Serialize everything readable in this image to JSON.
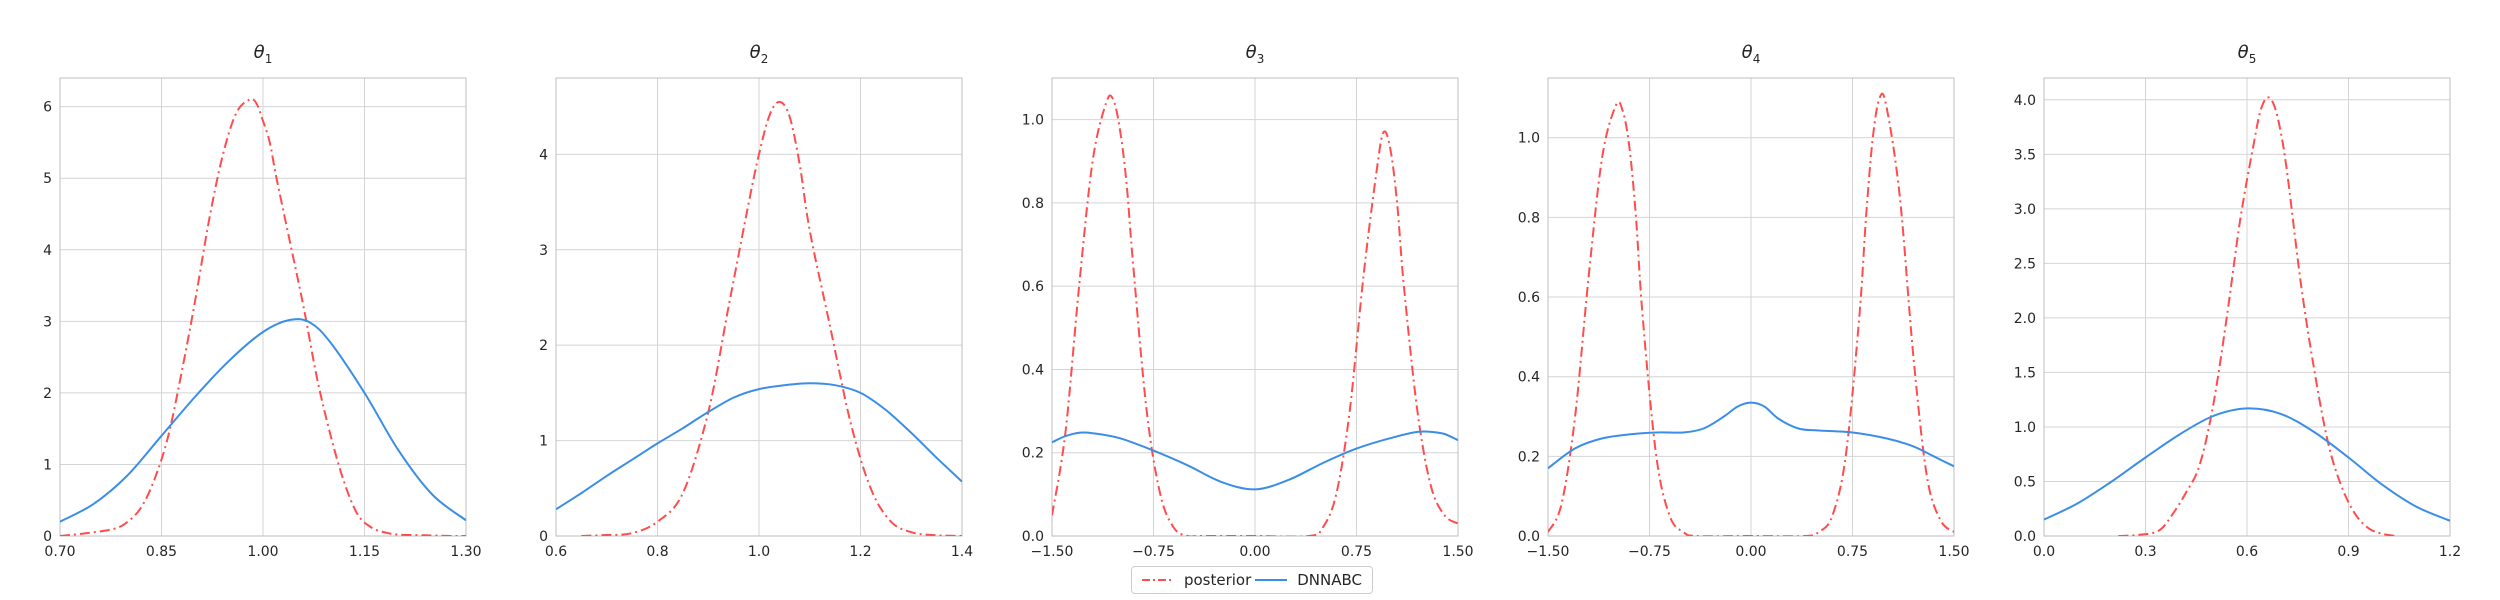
{
  "chart_data": [
    {
      "type": "line",
      "title": "θ1",
      "xlabel": "",
      "ylabel": "",
      "xlim": [
        0.7,
        1.3
      ],
      "ylim": [
        0,
        6.4
      ],
      "xticks": [
        0.7,
        0.85,
        1.0,
        1.15,
        1.3
      ],
      "xtick_labels": [
        "0.70",
        "0.85",
        "1.00",
        "1.15",
        "1.30"
      ],
      "yticks": [
        0,
        1,
        2,
        3,
        4,
        5,
        6
      ],
      "ytick_labels": [
        "0",
        "1",
        "2",
        "3",
        "4",
        "5",
        "6"
      ],
      "grid": true,
      "series": [
        {
          "name": "posterior",
          "style": "dashdot",
          "color": "#ff4d4d",
          "x": [
            0.7,
            0.74,
            0.78,
            0.8,
            0.82,
            0.84,
            0.86,
            0.88,
            0.9,
            0.92,
            0.94,
            0.96,
            0.98,
            0.99,
            1.0,
            1.01,
            1.02,
            1.04,
            1.06,
            1.08,
            1.1,
            1.12,
            1.14,
            1.16,
            1.18,
            1.2,
            1.24,
            1.28,
            1.3
          ],
          "y": [
            0.0,
            0.04,
            0.1,
            0.2,
            0.4,
            0.8,
            1.4,
            2.3,
            3.3,
            4.4,
            5.3,
            5.9,
            6.1,
            6.05,
            5.8,
            5.5,
            5.0,
            4.1,
            3.2,
            2.2,
            1.4,
            0.75,
            0.3,
            0.12,
            0.05,
            0.02,
            0.01,
            0.0,
            0.0
          ]
        },
        {
          "name": "DNNABC",
          "style": "solid",
          "color": "#3b8ee8",
          "x": [
            0.7,
            0.75,
            0.8,
            0.85,
            0.9,
            0.95,
            1.0,
            1.04,
            1.07,
            1.1,
            1.15,
            1.2,
            1.25,
            1.3
          ],
          "y": [
            0.2,
            0.45,
            0.85,
            1.4,
            1.95,
            2.45,
            2.85,
            3.02,
            2.98,
            2.7,
            2.0,
            1.2,
            0.58,
            0.22
          ]
        }
      ]
    },
    {
      "type": "line",
      "title": "θ2",
      "xlabel": "",
      "ylabel": "",
      "xlim": [
        0.6,
        1.4
      ],
      "ylim": [
        0,
        4.8
      ],
      "xticks": [
        0.6,
        0.8,
        1.0,
        1.2,
        1.4
      ],
      "xtick_labels": [
        "0.6",
        "0.8",
        "1.0",
        "1.2",
        "1.4"
      ],
      "yticks": [
        0,
        1,
        2,
        3,
        4
      ],
      "ytick_labels": [
        "0",
        "1",
        "2",
        "3",
        "4"
      ],
      "grid": true,
      "series": [
        {
          "name": "posterior",
          "style": "dashdot",
          "color": "#ff4d4d",
          "x": [
            0.65,
            0.7,
            0.75,
            0.8,
            0.85,
            0.9,
            0.94,
            0.98,
            1.0,
            1.02,
            1.04,
            1.06,
            1.08,
            1.1,
            1.14,
            1.18,
            1.22,
            1.26,
            1.3,
            1.34,
            1.4
          ],
          "y": [
            0.0,
            0.01,
            0.03,
            0.15,
            0.45,
            1.3,
            2.4,
            3.5,
            4.0,
            4.4,
            4.55,
            4.4,
            3.9,
            3.2,
            2.2,
            1.2,
            0.5,
            0.15,
            0.04,
            0.01,
            0.0
          ]
        },
        {
          "name": "DNNABC",
          "style": "solid",
          "color": "#3b8ee8",
          "x": [
            0.6,
            0.65,
            0.7,
            0.75,
            0.8,
            0.85,
            0.9,
            0.95,
            1.0,
            1.05,
            1.1,
            1.15,
            1.2,
            1.25,
            1.3,
            1.35,
            1.4
          ],
          "y": [
            0.28,
            0.45,
            0.63,
            0.8,
            0.97,
            1.13,
            1.3,
            1.45,
            1.54,
            1.58,
            1.6,
            1.58,
            1.5,
            1.32,
            1.08,
            0.82,
            0.57
          ]
        }
      ]
    },
    {
      "type": "line",
      "title": "θ3",
      "xlabel": "",
      "ylabel": "",
      "xlim": [
        -1.5,
        1.5
      ],
      "ylim": [
        0,
        1.1
      ],
      "xticks": [
        -1.5,
        -0.75,
        0.0,
        0.75,
        1.5
      ],
      "xtick_labels": [
        "−1.50",
        "−0.75",
        "0.00",
        "0.75",
        "1.50"
      ],
      "yticks": [
        0,
        0.2,
        0.4,
        0.6,
        0.8,
        1.0
      ],
      "ytick_labels": [
        "0.0",
        "0.2",
        "0.4",
        "0.6",
        "0.8",
        "1.0"
      ],
      "grid": true,
      "series": [
        {
          "name": "posterior",
          "style": "dashdot",
          "color": "#ff4d4d",
          "x": [
            -1.5,
            -1.4,
            -1.3,
            -1.2,
            -1.1,
            -1.05,
            -1.0,
            -0.95,
            -0.9,
            -0.8,
            -0.7,
            -0.6,
            -0.5,
            -0.4,
            0.0,
            0.4,
            0.5,
            0.6,
            0.7,
            0.8,
            0.9,
            0.95,
            1.0,
            1.05,
            1.1,
            1.2,
            1.3,
            1.4,
            1.5
          ],
          "y": [
            0.05,
            0.25,
            0.6,
            0.9,
            1.04,
            1.05,
            0.98,
            0.85,
            0.65,
            0.3,
            0.1,
            0.02,
            0.0,
            0.0,
            0.0,
            0.0,
            0.02,
            0.1,
            0.3,
            0.62,
            0.88,
            0.97,
            0.93,
            0.8,
            0.6,
            0.3,
            0.12,
            0.05,
            0.03
          ]
        },
        {
          "name": "DNNABC",
          "style": "solid",
          "color": "#3b8ee8",
          "x": [
            -1.5,
            -1.4,
            -1.3,
            -1.2,
            -1.0,
            -0.75,
            -0.5,
            -0.25,
            0.0,
            0.25,
            0.5,
            0.75,
            1.0,
            1.2,
            1.3,
            1.4,
            1.5
          ],
          "y": [
            0.225,
            0.24,
            0.248,
            0.247,
            0.235,
            0.205,
            0.17,
            0.13,
            0.112,
            0.135,
            0.175,
            0.21,
            0.235,
            0.25,
            0.25,
            0.245,
            0.23
          ]
        }
      ]
    },
    {
      "type": "line",
      "title": "θ4",
      "xlabel": "",
      "ylabel": "",
      "xlim": [
        -1.5,
        1.5
      ],
      "ylim": [
        0,
        1.15
      ],
      "xticks": [
        -1.5,
        -0.75,
        0.0,
        0.75,
        1.5
      ],
      "xtick_labels": [
        "−1.50",
        "−0.75",
        "0.00",
        "0.75",
        "1.50"
      ],
      "yticks": [
        0,
        0.2,
        0.4,
        0.6,
        0.8,
        1.0
      ],
      "ytick_labels": [
        "0.0",
        "0.2",
        "0.4",
        "0.6",
        "0.8",
        "1.0"
      ],
      "grid": true,
      "series": [
        {
          "name": "posterior",
          "style": "dashdot",
          "color": "#ff4d4d",
          "x": [
            -1.5,
            -1.4,
            -1.3,
            -1.2,
            -1.1,
            -1.0,
            -0.95,
            -0.9,
            -0.85,
            -0.8,
            -0.7,
            -0.6,
            -0.5,
            -0.4,
            0.0,
            0.4,
            0.5,
            0.6,
            0.7,
            0.8,
            0.85,
            0.9,
            0.95,
            1.0,
            1.1,
            1.2,
            1.3,
            1.4,
            1.5
          ],
          "y": [
            0.01,
            0.08,
            0.3,
            0.65,
            0.95,
            1.08,
            1.07,
            0.98,
            0.8,
            0.55,
            0.2,
            0.05,
            0.01,
            0.0,
            0.0,
            0.0,
            0.01,
            0.05,
            0.2,
            0.55,
            0.8,
            1.0,
            1.1,
            1.08,
            0.85,
            0.45,
            0.15,
            0.04,
            0.01
          ]
        },
        {
          "name": "DNNABC",
          "style": "solid",
          "color": "#3b8ee8",
          "x": [
            -1.5,
            -1.3,
            -1.1,
            -0.9,
            -0.7,
            -0.5,
            -0.35,
            -0.2,
            -0.1,
            0.0,
            0.1,
            0.2,
            0.35,
            0.5,
            0.75,
            1.0,
            1.2,
            1.35,
            1.5
          ],
          "y": [
            0.17,
            0.22,
            0.245,
            0.255,
            0.26,
            0.26,
            0.27,
            0.3,
            0.325,
            0.335,
            0.325,
            0.295,
            0.27,
            0.265,
            0.26,
            0.245,
            0.225,
            0.2,
            0.175
          ]
        }
      ]
    },
    {
      "type": "line",
      "title": "θ5",
      "xlabel": "",
      "ylabel": "",
      "xlim": [
        0.0,
        1.2
      ],
      "ylim": [
        0,
        4.2
      ],
      "xticks": [
        0.0,
        0.3,
        0.6,
        0.9,
        1.2
      ],
      "xtick_labels": [
        "0.0",
        "0.3",
        "0.6",
        "0.9",
        "1.2"
      ],
      "yticks": [
        0,
        0.5,
        1.0,
        1.5,
        2.0,
        2.5,
        3.0,
        3.5,
        4.0
      ],
      "ytick_labels": [
        "0.0",
        "0.5",
        "1.0",
        "1.5",
        "2.0",
        "2.5",
        "3.0",
        "3.5",
        "4.0"
      ],
      "grid": true,
      "series": [
        {
          "name": "posterior",
          "style": "dashdot",
          "color": "#ff4d4d",
          "x": [
            0.22,
            0.28,
            0.34,
            0.38,
            0.42,
            0.46,
            0.5,
            0.54,
            0.58,
            0.62,
            0.64,
            0.66,
            0.68,
            0.7,
            0.72,
            0.76,
            0.8,
            0.84,
            0.88,
            0.92,
            0.96,
            1.0,
            1.04
          ],
          "y": [
            0.0,
            0.01,
            0.05,
            0.2,
            0.4,
            0.65,
            1.2,
            2.0,
            2.9,
            3.6,
            3.9,
            4.02,
            3.95,
            3.7,
            3.3,
            2.3,
            1.5,
            0.85,
            0.45,
            0.2,
            0.07,
            0.02,
            0.0
          ]
        },
        {
          "name": "DNNABC",
          "style": "solid",
          "color": "#3b8ee8",
          "x": [
            0.0,
            0.1,
            0.2,
            0.3,
            0.4,
            0.5,
            0.6,
            0.7,
            0.8,
            0.9,
            1.0,
            1.1,
            1.2
          ],
          "y": [
            0.15,
            0.3,
            0.5,
            0.72,
            0.93,
            1.1,
            1.17,
            1.12,
            0.95,
            0.72,
            0.47,
            0.27,
            0.14
          ]
        }
      ]
    }
  ],
  "legend": {
    "placement": "bottom-center",
    "items": [
      {
        "label": "posterior",
        "color": "#ff4d4d",
        "style": "dashdot"
      },
      {
        "label": "DNNABC",
        "color": "#3b8ee8",
        "style": "solid"
      }
    ]
  }
}
